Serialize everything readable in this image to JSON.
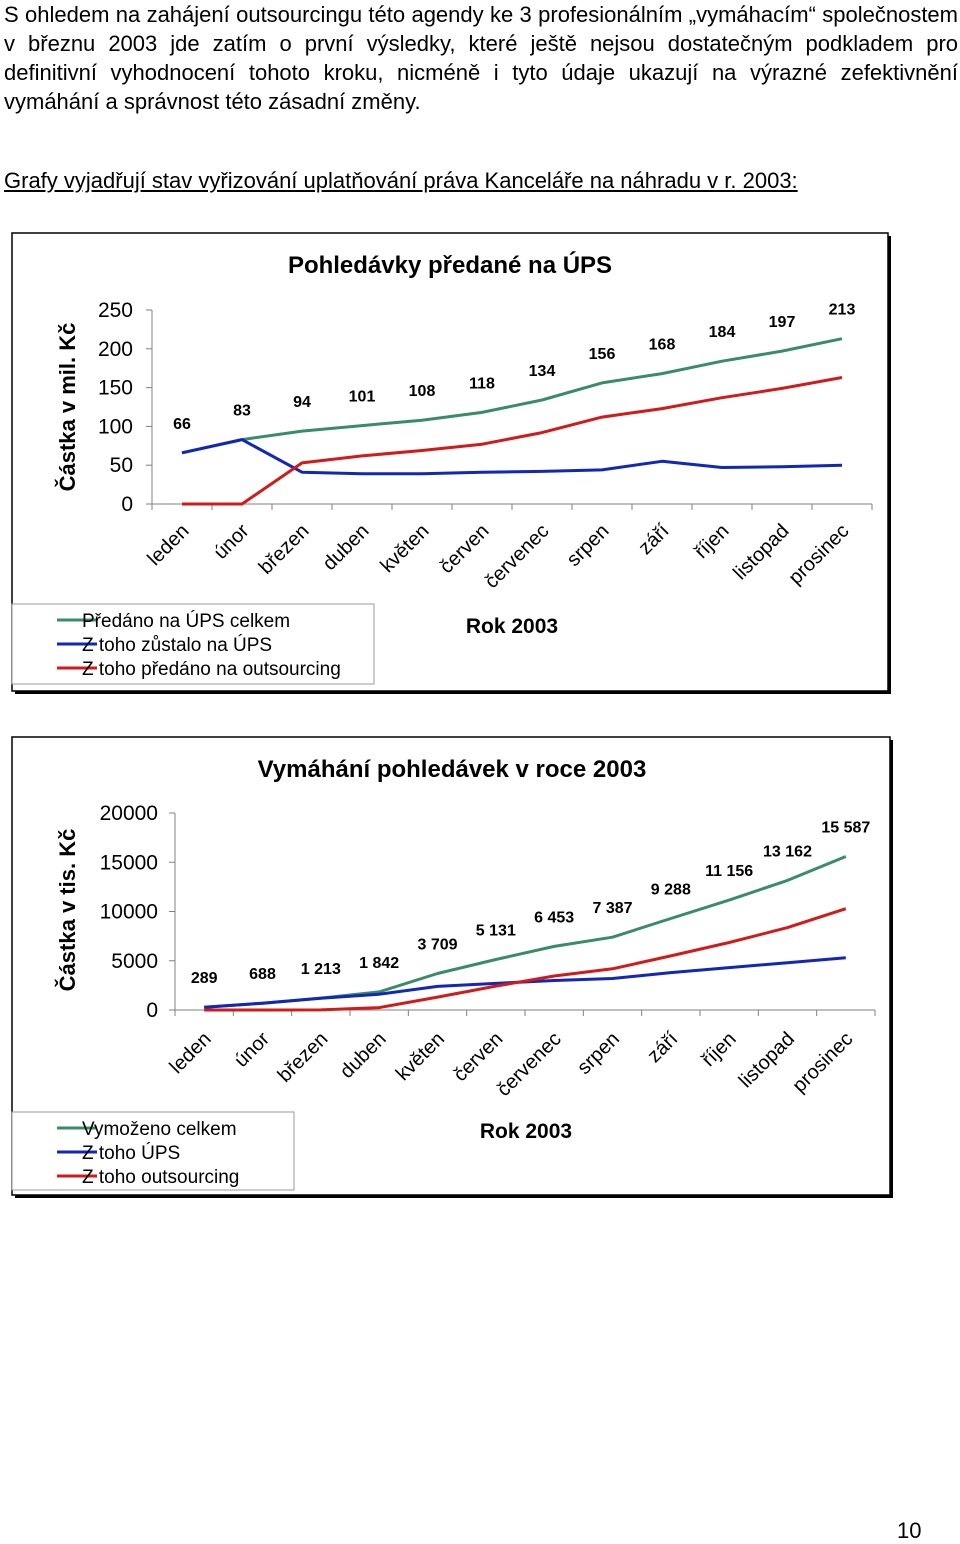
{
  "paragraph": "S ohledem na zahájení outsourcingu této agendy ke 3 profesionálním „vymáhacím“ společnostem v březnu 2003 jde zatím o první výsledky, které ještě nejsou dostatečným podkladem pro definitivní vyhodnocení tohoto kroku, nicméně i tyto údaje ukazují na výrazné zefektivnění vymáhání a správnost této zásadní změny.",
  "intro": "Grafy vyjadřují stav vyřizování uplatňování práva Kanceláře na náhradu v r. 2003:",
  "page_number": "10",
  "chart_data": [
    {
      "type": "line",
      "title": "Pohledávky předané na ÚPS",
      "xlabel": "Rok 2003",
      "ylabel": "Částka v mil. Kč",
      "ylim": [
        0,
        250
      ],
      "yticks": [
        "0",
        "50",
        "100",
        "150",
        "200",
        "250"
      ],
      "grid": false,
      "legend_position": "bottom-left",
      "categories": [
        "leden",
        "únor",
        "březen",
        "duben",
        "květen",
        "červen",
        "červenec",
        "srpen",
        "září",
        "říjen",
        "listopad",
        "prosinec"
      ],
      "series": [
        {
          "name": "Předáno na ÚPS celkem",
          "color": "#3a8c68",
          "values": [
            66,
            83,
            94,
            101,
            108,
            118,
            134,
            156,
            168,
            184,
            197,
            213
          ],
          "labels": [
            "66",
            "83",
            "94",
            "101",
            "108",
            "118",
            "134",
            "156",
            "168",
            "184",
            "197",
            "213"
          ]
        },
        {
          "name": "Z toho zůstalo na ÚPS",
          "color": "#1226b8",
          "values": [
            66,
            83,
            41,
            39,
            39,
            41,
            42,
            44,
            55,
            47,
            48,
            50
          ]
        },
        {
          "name": "Z toho předáno na outsourcing",
          "color": "#d11a1a",
          "values": [
            0,
            0,
            53,
            62,
            69,
            77,
            92,
            112,
            123,
            137,
            149,
            163
          ]
        }
      ]
    },
    {
      "type": "line",
      "title": "Vymáhání pohledávek v roce 2003",
      "xlabel": "Rok 2003",
      "ylabel": "Částka v tis. Kč",
      "ylim": [
        0,
        20000
      ],
      "yticks": [
        "0",
        "5000",
        "10000",
        "15000",
        "20000"
      ],
      "grid": false,
      "legend_position": "bottom-left",
      "categories": [
        "leden",
        "únor",
        "březen",
        "duben",
        "květen",
        "červen",
        "červenec",
        "srpen",
        "září",
        "říjen",
        "listopad",
        "prosinec"
      ],
      "series": [
        {
          "name": "Vymoženo celkem",
          "color": "#3a8c68",
          "values": [
            289,
            688,
            1213,
            1842,
            3709,
            5131,
            6453,
            7387,
            9288,
            11156,
            13162,
            15587
          ],
          "labels": [
            "289",
            "688",
            "1 213",
            "1 842",
            "3 709",
            "5 131",
            "6 453",
            "7 387",
            "9 288",
            "11 156",
            "13 162",
            "15 587"
          ]
        },
        {
          "name": "Z toho ÚPS",
          "color": "#1226b8",
          "values": [
            289,
            688,
            1200,
            1600,
            2400,
            2700,
            3000,
            3200,
            3800,
            4300,
            4800,
            5300
          ]
        },
        {
          "name": "Z toho outsourcing",
          "color": "#d11a1a",
          "values": [
            0,
            0,
            13,
            242,
            1309,
            2431,
            3453,
            4187,
            5488,
            6856,
            8362,
            10287
          ]
        }
      ]
    }
  ]
}
